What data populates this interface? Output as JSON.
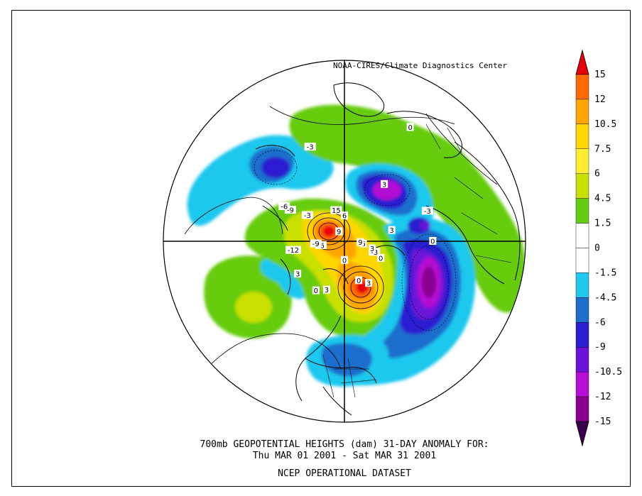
{
  "credit": "NOAA-CIRES/Climate Diagnostics Center",
  "caption": {
    "line1": "700mb GEOPOTENTIAL HEIGHTS (dam)   31-DAY ANOMALY FOR:",
    "line2": "Thu MAR 01 2001 - Sat MAR 31 2001",
    "line3": "NCEP OPERATIONAL DATASET"
  },
  "legend": {
    "levels": [
      {
        "label": "15",
        "color": "#e8000b"
      },
      {
        "label": "12",
        "color": "#ff6a00"
      },
      {
        "label": "10.5",
        "color": "#ffa500"
      },
      {
        "label": "7.5",
        "color": "#ffd600"
      },
      {
        "label": "6",
        "color": "#ffee33"
      },
      {
        "label": "4.5",
        "color": "#c8e000"
      },
      {
        "label": "1.5",
        "color": "#66cc11"
      },
      {
        "label": "0",
        "color": "#ffffff"
      },
      {
        "label": "-1.5",
        "color": "#ffffff"
      },
      {
        "label": "-4.5",
        "color": "#1ec8ee"
      },
      {
        "label": "-6",
        "color": "#1e6ecc"
      },
      {
        "label": "-9",
        "color": "#2a1ed0"
      },
      {
        "label": "-10.5",
        "color": "#6a12d8"
      },
      {
        "label": "-12",
        "color": "#b40fd2"
      },
      {
        "label": "-15",
        "color": "#8a0090"
      }
    ],
    "top_arrow_color": "#e8000b",
    "bottom_arrow_color": "#3a0050"
  },
  "contour_labels": [
    {
      "text": "0",
      "lon": 200,
      "lat": 64
    },
    {
      "text": "3",
      "lon": 210,
      "lat": 60
    },
    {
      "text": "3",
      "lon": 160,
      "lat": 58
    },
    {
      "text": "0",
      "lon": 150,
      "lat": 55
    },
    {
      "text": "3",
      "lon": 125,
      "lat": 55
    },
    {
      "text": "-3",
      "lon": 55,
      "lat": 62
    },
    {
      "text": "-6",
      "lon": 100,
      "lat": 75
    },
    {
      "text": "-9",
      "lon": 95,
      "lat": 72
    },
    {
      "text": "0",
      "lon": 180,
      "lat": 78
    },
    {
      "text": "-3",
      "lon": 250,
      "lat": 70
    },
    {
      "text": "0",
      "lon": 245,
      "lat": 65
    },
    {
      "text": "3",
      "lon": 255,
      "lat": 72
    },
    {
      "text": "6",
      "lon": 262,
      "lat": 78
    },
    {
      "text": "9",
      "lon": 266,
      "lat": 80
    },
    {
      "text": "-3",
      "lon": 290,
      "lat": 38
    },
    {
      "text": "3",
      "lon": 283,
      "lat": 60
    },
    {
      "text": "0",
      "lon": 270,
      "lat": 38
    },
    {
      "text": "-12",
      "lon": 100,
      "lat": 58
    },
    {
      "text": "9",
      "lon": 30,
      "lat": 83
    },
    {
      "text": "15",
      "lon": 15,
      "lat": 70
    },
    {
      "text": "6",
      "lon": 0,
      "lat": 74
    },
    {
      "text": "3",
      "lon": 325,
      "lat": 48
    },
    {
      "text": "-9",
      "lon": 60,
      "lat": 52
    },
    {
      "text": "-6",
      "lon": 60,
      "lat": 48
    },
    {
      "text": "-3",
      "lon": 20,
      "lat": 32
    },
    {
      "text": "0",
      "lon": 330,
      "lat": 18
    }
  ]
}
